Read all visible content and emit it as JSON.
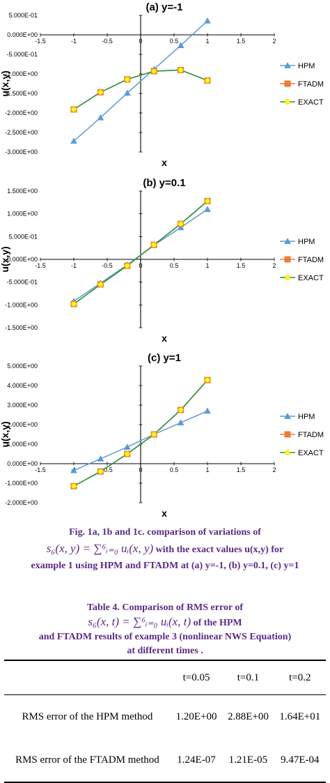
{
  "chart_data": [
    {
      "type": "line",
      "title": "(a) y=-1",
      "xlabel": "x",
      "ylabel": "u(x,y)",
      "xlim": [
        -1.5,
        2
      ],
      "ylim": [
        -3.0,
        0.5
      ],
      "xticks": [
        "-1.5",
        "-1",
        "-0.5",
        "0",
        "0.5",
        "1",
        "1.5",
        "2"
      ],
      "yticks": [
        "5.000E-01",
        "0.000E+00",
        "-5.000E-01",
        "-1.000E+00",
        "-1.500E+00",
        "-2.000E+00",
        "-2.500E+00",
        "-3.000E+00"
      ],
      "legend_position": "right",
      "series": [
        {
          "name": "HPM",
          "x": [
            -1,
            -0.6,
            -0.2,
            0.2,
            0.6,
            1
          ],
          "values": [
            -2.72,
            -2.12,
            -1.49,
            -0.88,
            -0.27,
            0.36
          ]
        },
        {
          "name": "FTADM",
          "x": [
            -1,
            -0.6,
            -0.2,
            0.2,
            0.6,
            1
          ],
          "values": [
            -1.91,
            -1.47,
            -1.14,
            -0.93,
            -0.9,
            -1.17
          ]
        },
        {
          "name": "EXACT",
          "x": [
            -1,
            -0.6,
            -0.2,
            0.2,
            0.6,
            1
          ],
          "values": [
            -1.91,
            -1.47,
            -1.14,
            -0.93,
            -0.9,
            -1.17
          ]
        }
      ]
    },
    {
      "type": "line",
      "title": "(b) y=0.1",
      "xlabel": "x",
      "ylabel": "u(x,y)",
      "xlim": [
        -1.5,
        2
      ],
      "ylim": [
        -1.5,
        1.5
      ],
      "xticks": [
        "-1.5",
        "-1",
        "-0.5",
        "0",
        "0.5",
        "1",
        "1.5",
        "2"
      ],
      "yticks": [
        "1.500E+00",
        "1.000E+00",
        "5.000E-01",
        "0.000E+00",
        "-5.000E-01",
        "-1.000E+00",
        "-1.500E+00"
      ],
      "legend_position": "right",
      "series": [
        {
          "name": "HPM",
          "x": [
            -1,
            -0.6,
            -0.2,
            0.2,
            0.6,
            1
          ],
          "values": [
            -0.92,
            -0.52,
            -0.12,
            0.31,
            0.7,
            1.1
          ]
        },
        {
          "name": "FTADM",
          "x": [
            -1,
            -0.6,
            -0.2,
            0.2,
            0.6,
            1
          ],
          "values": [
            -0.98,
            -0.55,
            -0.14,
            0.32,
            0.78,
            1.28
          ]
        },
        {
          "name": "EXACT",
          "x": [
            -1,
            -0.6,
            -0.2,
            0.2,
            0.6,
            1
          ],
          "values": [
            -0.98,
            -0.55,
            -0.14,
            0.32,
            0.78,
            1.28
          ]
        }
      ]
    },
    {
      "type": "line",
      "title": "(c) y=1",
      "xlabel": "x",
      "ylabel": "u(x,y)",
      "xlim": [
        -1.5,
        2
      ],
      "ylim": [
        -2.0,
        5.0
      ],
      "xticks": [
        "-1.5",
        "-1",
        "-0.5",
        "0",
        "0.5",
        "1",
        "1.5",
        "2"
      ],
      "yticks": [
        "5.000E+00",
        "4.000E+00",
        "3.000E+00",
        "2.000E+00",
        "1.000E+00",
        "0.000E+00",
        "-1.000E+00",
        "-2.000E+00"
      ],
      "legend_position": "right",
      "series": [
        {
          "name": "HPM",
          "x": [
            -1,
            -0.6,
            -0.2,
            0.2,
            0.6,
            1
          ],
          "values": [
            -0.35,
            0.25,
            0.85,
            1.5,
            2.1,
            2.7
          ]
        },
        {
          "name": "FTADM",
          "x": [
            -1,
            -0.6,
            -0.2,
            0.2,
            0.6,
            1
          ],
          "values": [
            -1.15,
            -0.4,
            0.5,
            1.5,
            2.75,
            4.28
          ]
        },
        {
          "name": "EXACT",
          "x": [
            -1,
            -0.6,
            -0.2,
            0.2,
            0.6,
            1
          ],
          "values": [
            -1.15,
            -0.4,
            0.5,
            1.5,
            2.75,
            4.28
          ]
        }
      ]
    }
  ],
  "colors": {
    "hpm": "#5b9bd5",
    "ftadm": "#ed7d31",
    "exact_line": "#1a9641",
    "exact_marker": "#ffff00",
    "caption": "#5b2a86"
  },
  "figure_caption": {
    "line1": "Fig. 1a, 1b and 1c. comparison of variations of",
    "formula": "s₆(x, y) = ∑⁶ᵢ₌₀ uᵢ(x, y)",
    "line2_suffix": "with the exact values u(x,y) for",
    "line3": "example 1 using HPM and FTADM at (a) y=-1, (b) y=0.1, (c) y=1"
  },
  "table_caption": {
    "line1": "Table 4. Comparison of RMS error of",
    "formula": "s₆(x, t) = ∑⁶ᵢ₌₀ uᵢ(x, t)",
    "line2_suffix": "of the HPM",
    "line3": "and FTADM results of example 3 (nonlinear NWS Equation)",
    "line4": "at different times ."
  },
  "table": {
    "headers": [
      "",
      "t=0.05",
      "t=0.1",
      "t=0.2"
    ],
    "rows": [
      {
        "label": "RMS error of the HPM method",
        "values": [
          "1.20E+00",
          "2.88E+00",
          "1.64E+01"
        ]
      },
      {
        "label": "RMS error of the FTADM method",
        "values": [
          "1.24E-07",
          "1.21E-05",
          "9.47E-04"
        ]
      }
    ]
  }
}
